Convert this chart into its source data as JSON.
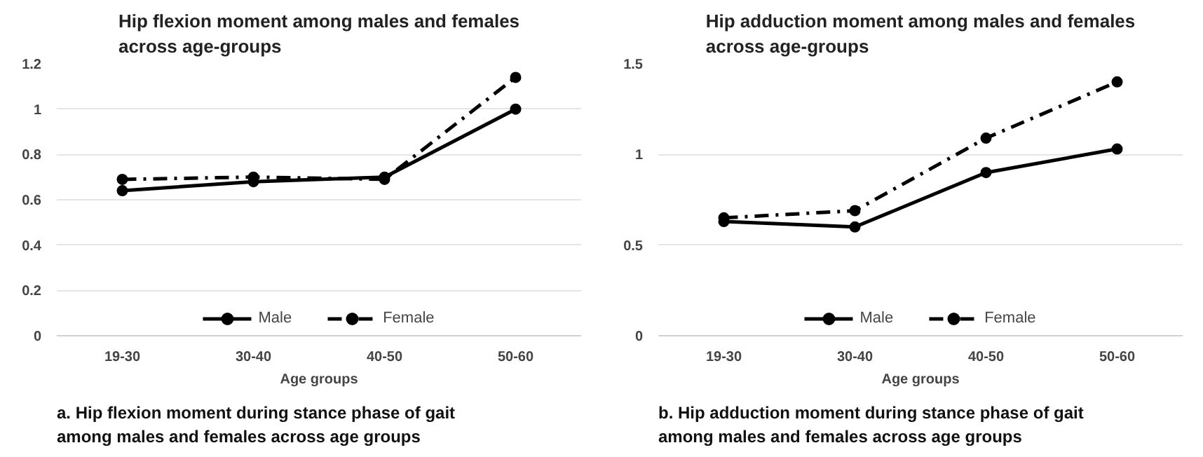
{
  "chart_data": [
    {
      "type": "line",
      "title": "Hip flexion moment among males and females across age-groups",
      "xlabel": "Age groups",
      "categories": [
        "19-30",
        "30-40",
        "40-50",
        "50-60"
      ],
      "ylim": [
        0,
        1.2
      ],
      "yticks": [
        0,
        0.2,
        0.4,
        0.6,
        0.8,
        1,
        1.2
      ],
      "grid": "y",
      "legend": "bottom",
      "marker": "circle",
      "series": [
        {
          "name": "Male",
          "color": "#000000",
          "line_style": "solid",
          "values": [
            0.64,
            0.68,
            0.7,
            1.0
          ]
        },
        {
          "name": "Female",
          "color": "#000000",
          "line_style": "dashdot",
          "values": [
            0.69,
            0.7,
            0.69,
            1.14
          ]
        }
      ],
      "annotations": [
        "a. Hip flexion moment during stance phase of gait among males and females across age groups"
      ]
    },
    {
      "type": "line",
      "title": "Hip adduction moment among males and females across age-groups",
      "xlabel": "Age groups",
      "categories": [
        "19-30",
        "30-40",
        "40-50",
        "50-60"
      ],
      "ylim": [
        0,
        1.5
      ],
      "yticks": [
        0,
        0.5,
        1,
        1.5
      ],
      "grid": "y",
      "legend": "bottom",
      "marker": "circle",
      "series": [
        {
          "name": "Male",
          "color": "#000000",
          "line_style": "solid",
          "values": [
            0.63,
            0.6,
            0.9,
            1.03
          ]
        },
        {
          "name": "Female",
          "color": "#000000",
          "line_style": "dashdot",
          "values": [
            0.65,
            0.69,
            1.09,
            1.4
          ]
        }
      ],
      "annotations": [
        "b. Hip adduction moment during stance phase of gait among males and females across age groups"
      ]
    }
  ]
}
